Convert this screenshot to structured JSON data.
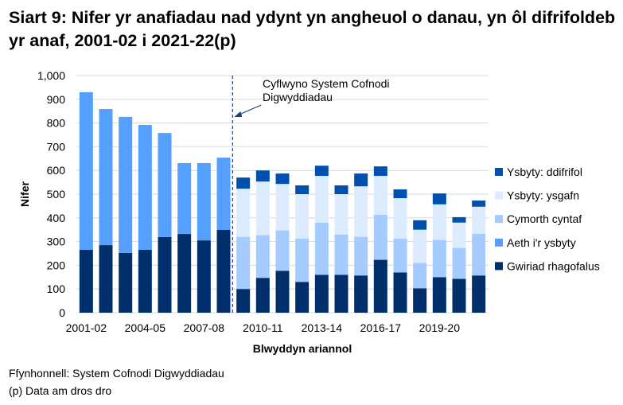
{
  "title": "Siart 9: Nifer yr anafiadau nad ydynt yn angheuol o danau, yn ôl difrifoldeb yr anaf, 2001-02 i 2021-22(p)",
  "footer": {
    "source": "Ffynhonnell: System Cofnodi Digwyddiadau",
    "note": "(p) Data am dros dro"
  },
  "chart_data": {
    "type": "bar",
    "stacked": true,
    "xlabel": "Blwyddyn ariannol",
    "ylabel": "Nifer",
    "ylim": [
      0,
      1000
    ],
    "yticks": [
      "0",
      "100",
      "200",
      "300",
      "400",
      "500",
      "600",
      "700",
      "800",
      "900",
      "1,000"
    ],
    "grid": true,
    "legend_position": "right",
    "categories": [
      "2001-02",
      "2002-03",
      "2003-04",
      "2004-05",
      "2005-06",
      "2006-07",
      "2007-08",
      "2008-09",
      "2009-10",
      "2010-11",
      "2011-12",
      "2012-13",
      "2013-14",
      "2014-15",
      "2015-16",
      "2016-17",
      "2017-18",
      "2018-19",
      "2019-20",
      "2020-21",
      "2021-22"
    ],
    "xtick_labels": [
      "2001-02",
      "",
      "",
      "2004-05",
      "",
      "",
      "2007-08",
      "",
      "",
      "2010-11",
      "",
      "",
      "2013-14",
      "",
      "",
      "2016-17",
      "",
      "",
      "2019-20",
      "",
      ""
    ],
    "annotation": {
      "text_line1": "Cyflwyno System Cofnodi",
      "text_line2": "Digwyddiadau",
      "at_category": "2009-10"
    },
    "series": [
      {
        "name": "Gwiriad rhagofalus",
        "color": "#002F6C",
        "values": [
          265,
          285,
          252,
          265,
          319,
          332,
          305,
          349,
          100,
          147,
          177,
          130,
          160,
          160,
          157,
          223,
          170,
          103,
          150,
          143,
          157
        ]
      },
      {
        "name": "Aeth i'r ysbyty",
        "color": "#55A0FF",
        "values": [
          665,
          574,
          574,
          527,
          439,
          299,
          326,
          305,
          null,
          null,
          null,
          null,
          null,
          null,
          null,
          null,
          null,
          null,
          null,
          null,
          null
        ]
      },
      {
        "name": "Cymorth cyntaf",
        "color": "#A6CBFF",
        "values": [
          null,
          null,
          null,
          null,
          null,
          null,
          null,
          null,
          220,
          180,
          170,
          183,
          220,
          170,
          163,
          190,
          143,
          107,
          157,
          130,
          176
        ]
      },
      {
        "name": "Ysbyty: ysgafn",
        "color": "#DDEBFF",
        "values": [
          null,
          null,
          null,
          null,
          null,
          null,
          null,
          null,
          203,
          226,
          196,
          187,
          197,
          170,
          213,
          164,
          170,
          140,
          150,
          107,
          114
        ]
      },
      {
        "name": "Ysbyty: ddifrifol",
        "color": "#0050B0",
        "values": [
          null,
          null,
          null,
          null,
          null,
          null,
          null,
          null,
          47,
          47,
          44,
          37,
          43,
          37,
          54,
          40,
          37,
          40,
          46,
          23,
          26
        ]
      }
    ]
  }
}
